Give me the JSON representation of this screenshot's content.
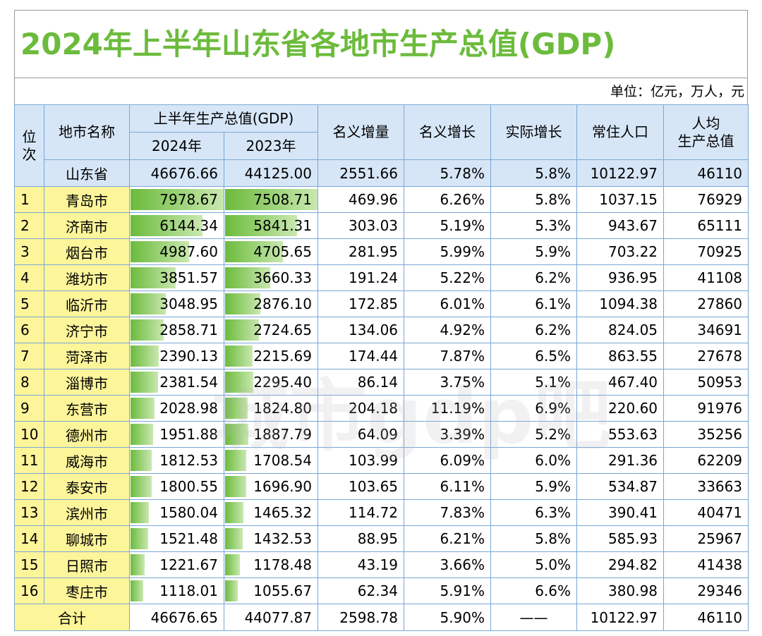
{
  "title": "2024年上半年山东省各地市生产总值(GDP)",
  "unit": "单位：亿元，万人，元",
  "watermark": "城市gdp吧",
  "header": {
    "rank": "位\n次",
    "name": "地市名称",
    "gdp": "上半年生产总值(GDP)",
    "y2024": "2024年",
    "y2023": "2023年",
    "nominal_increase": "名义增量",
    "nominal_growth": "名义增长",
    "real_growth": "实际增长",
    "population": "常住人口",
    "per_capita": "人均\n生产总值"
  },
  "province": [
    "山东省",
    "46676.66",
    "44125.00",
    "2551.66",
    "5.78%",
    "5.8%",
    "10122.97",
    "46110"
  ],
  "rows": [
    [
      "1",
      "青岛市",
      "7978.67",
      "7508.71",
      "469.96",
      "6.26%",
      "5.8%",
      "1037.15",
      "76929"
    ],
    [
      "2",
      "济南市",
      "6144.34",
      "5841.31",
      "303.03",
      "5.19%",
      "5.3%",
      "943.67",
      "65111"
    ],
    [
      "3",
      "烟台市",
      "4987.60",
      "4705.65",
      "281.95",
      "5.99%",
      "5.9%",
      "703.22",
      "70925"
    ],
    [
      "4",
      "潍坊市",
      "3851.57",
      "3660.33",
      "191.24",
      "5.22%",
      "6.2%",
      "936.95",
      "41108"
    ],
    [
      "5",
      "临沂市",
      "3048.95",
      "2876.10",
      "172.85",
      "6.01%",
      "6.1%",
      "1094.38",
      "27860"
    ],
    [
      "6",
      "济宁市",
      "2858.71",
      "2724.65",
      "134.06",
      "4.92%",
      "6.2%",
      "824.05",
      "34691"
    ],
    [
      "7",
      "菏泽市",
      "2390.13",
      "2215.69",
      "174.44",
      "7.87%",
      "6.5%",
      "863.55",
      "27678"
    ],
    [
      "8",
      "淄博市",
      "2381.54",
      "2295.40",
      "86.14",
      "3.75%",
      "5.1%",
      "467.40",
      "50953"
    ],
    [
      "9",
      "东营市",
      "2028.98",
      "1824.80",
      "204.18",
      "11.19%",
      "6.9%",
      "220.60",
      "91976"
    ],
    [
      "10",
      "德州市",
      "1951.88",
      "1887.79",
      "64.09",
      "3.39%",
      "5.2%",
      "553.63",
      "35256"
    ],
    [
      "11",
      "威海市",
      "1812.53",
      "1708.54",
      "103.99",
      "6.09%",
      "6.0%",
      "291.36",
      "62209"
    ],
    [
      "12",
      "泰安市",
      "1800.55",
      "1696.90",
      "103.65",
      "6.11%",
      "5.9%",
      "534.87",
      "33663"
    ],
    [
      "13",
      "滨州市",
      "1580.04",
      "1465.32",
      "114.72",
      "7.83%",
      "6.3%",
      "390.41",
      "40471"
    ],
    [
      "14",
      "聊城市",
      "1521.48",
      "1432.53",
      "88.95",
      "6.21%",
      "5.8%",
      "585.93",
      "25967"
    ],
    [
      "15",
      "日照市",
      "1221.67",
      "1178.48",
      "43.19",
      "3.66%",
      "5.0%",
      "294.82",
      "41438"
    ],
    [
      "16",
      "枣庄市",
      "1118.01",
      "1055.67",
      "62.34",
      "5.91%",
      "6.6%",
      "380.98",
      "29346"
    ]
  ],
  "total": [
    "合计",
    "46676.65",
    "44077.87",
    "2598.78",
    "5.90%",
    "——",
    "10122.97",
    "46110"
  ]
}
